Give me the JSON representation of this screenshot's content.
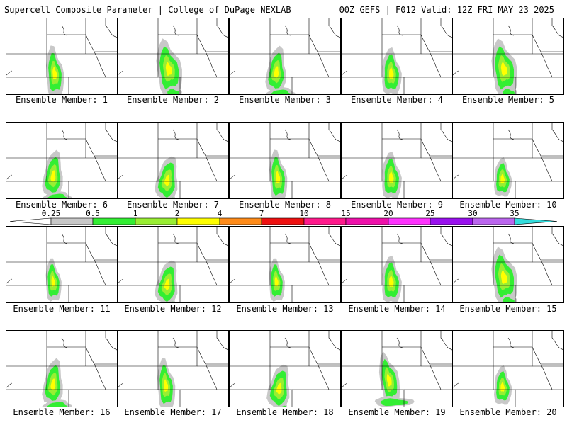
{
  "header": {
    "left_title": "Supercell Composite Parameter | College of DuPage NEXLAB",
    "right_title": "00Z GEFS | F012 Valid: 12Z FRI MAY 23 2025"
  },
  "panels": [
    {
      "label": "Ensemble Member: 1",
      "variant": 0
    },
    {
      "label": "Ensemble Member: 2",
      "variant": 1
    },
    {
      "label": "Ensemble Member: 3",
      "variant": 2
    },
    {
      "label": "Ensemble Member: 4",
      "variant": 3
    },
    {
      "label": "Ensemble Member: 5",
      "variant": 1
    },
    {
      "label": "Ensemble Member: 6",
      "variant": 2
    },
    {
      "label": "Ensemble Member: 7",
      "variant": 4
    },
    {
      "label": "Ensemble Member: 8",
      "variant": 0
    },
    {
      "label": "Ensemble Member: 9",
      "variant": 3
    },
    {
      "label": "Ensemble Member: 10",
      "variant": 5
    },
    {
      "label": "Ensemble Member: 11",
      "variant": 6
    },
    {
      "label": "Ensemble Member: 12",
      "variant": 4
    },
    {
      "label": "Ensemble Member: 13",
      "variant": 6
    },
    {
      "label": "Ensemble Member: 14",
      "variant": 3
    },
    {
      "label": "Ensemble Member: 15",
      "variant": 1
    },
    {
      "label": "Ensemble Member: 16",
      "variant": 2
    },
    {
      "label": "Ensemble Member: 17",
      "variant": 0
    },
    {
      "label": "Ensemble Member: 18",
      "variant": 4
    },
    {
      "label": "Ensemble Member: 19",
      "variant": 7
    },
    {
      "label": "Ensemble Member: 20",
      "variant": 5
    }
  ],
  "colorbar": {
    "labels": [
      "0.25",
      "0.5",
      "1",
      "2",
      "4",
      "7",
      "10",
      "15",
      "20",
      "25",
      "30",
      "35"
    ],
    "colors": [
      "#c8c8c8",
      "#33ee33",
      "#99ee33",
      "#ffff00",
      "#ff8c1a",
      "#ee1111",
      "#ff1a8c",
      "#ee11aa",
      "#ff33ff",
      "#9911ee",
      "#bb66ee",
      "#33dddd"
    ],
    "below_min_color": "#ffffff"
  },
  "map_colors": {
    "light_gray": "#c8c8c8",
    "green": "#33ee33",
    "light_green": "#99ee33",
    "yellow": "#ffff00",
    "outline": "#000000"
  }
}
